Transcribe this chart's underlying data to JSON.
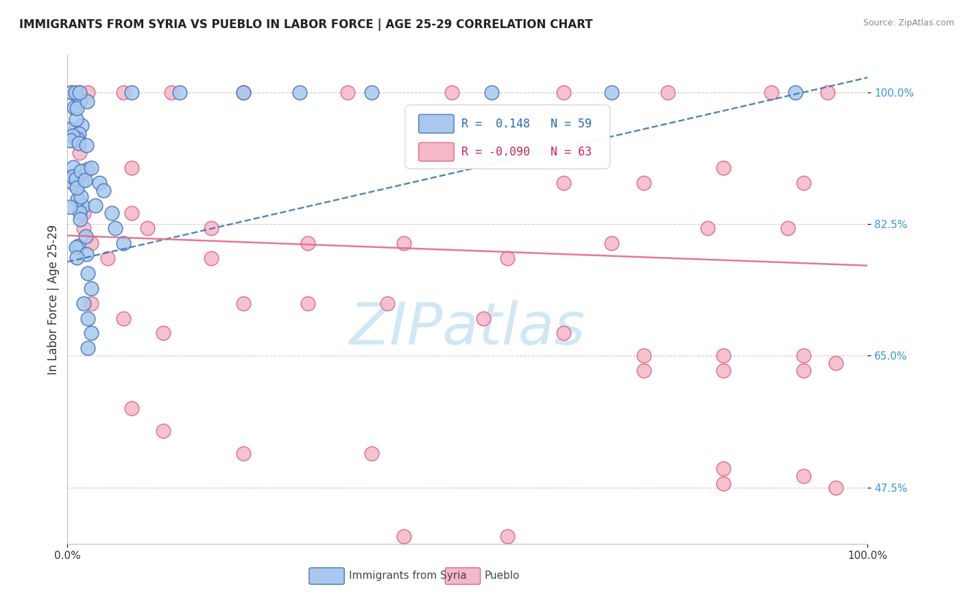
{
  "title": "IMMIGRANTS FROM SYRIA VS PUEBLO IN LABOR FORCE | AGE 25-29 CORRELATION CHART",
  "source_text": "Source: ZipAtlas.com",
  "ylabel": "In Labor Force | Age 25-29",
  "xlabel_blue": "Immigrants from Syria",
  "xlabel_pink": "Pueblo",
  "watermark": "ZIPatlas",
  "blue_R": 0.148,
  "blue_N": 59,
  "pink_R": -0.09,
  "pink_N": 63,
  "xlim": [
    0.0,
    1.0
  ],
  "ylim": [
    0.4,
    1.05
  ],
  "ytick_labels": [
    0.475,
    0.65,
    0.825,
    1.0
  ],
  "ytick_label_strings": [
    "47.5%",
    "65.0%",
    "82.5%",
    "100.0%"
  ],
  "xtick_labels": [
    0.0,
    1.0
  ],
  "xtick_label_strings": [
    "0.0%",
    "100.0%"
  ],
  "blue_color": "#aac8ee",
  "blue_edge_color": "#4477bb",
  "pink_color": "#f5b8c8",
  "pink_edge_color": "#e06888",
  "blue_line_color": "#4477bb",
  "pink_line_color": "#e06888",
  "grid_color": "#cccccc",
  "background_color": "#ffffff",
  "watermark_color": "#d0e8f5",
  "title_color": "#222222",
  "source_color": "#888888",
  "ylabel_color": "#333333",
  "ytick_color": "#3399cc",
  "xtick_color": "#333333",
  "legend_edge_color": "#cccccc",
  "blue_trend_start_x": 0.0,
  "blue_trend_start_y": 0.775,
  "blue_trend_end_x": 1.0,
  "blue_trend_end_y": 1.02,
  "pink_trend_start_x": 0.0,
  "pink_trend_start_y": 0.81,
  "pink_trend_end_x": 1.0,
  "pink_trend_end_y": 0.77
}
